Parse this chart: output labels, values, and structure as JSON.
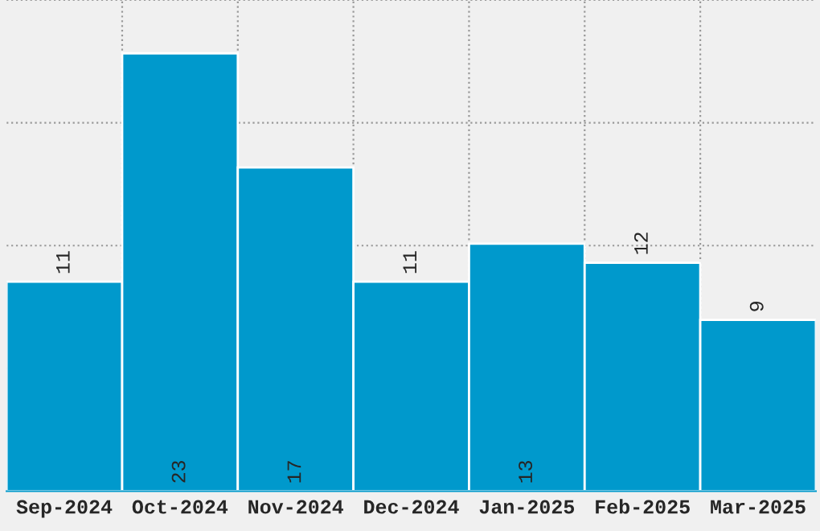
{
  "chart_data": {
    "type": "bar",
    "categories": [
      "Sep-2024",
      "Oct-2024",
      "Nov-2024",
      "Dec-2024",
      "Jan-2025",
      "Feb-2025",
      "Mar-2025"
    ],
    "values": [
      11,
      23,
      17,
      11,
      13,
      12,
      9
    ],
    "color": "#0099cc",
    "ylim": [
      0,
      25.8
    ],
    "tick_labels": "x",
    "data_labels": true,
    "grid": true
  }
}
